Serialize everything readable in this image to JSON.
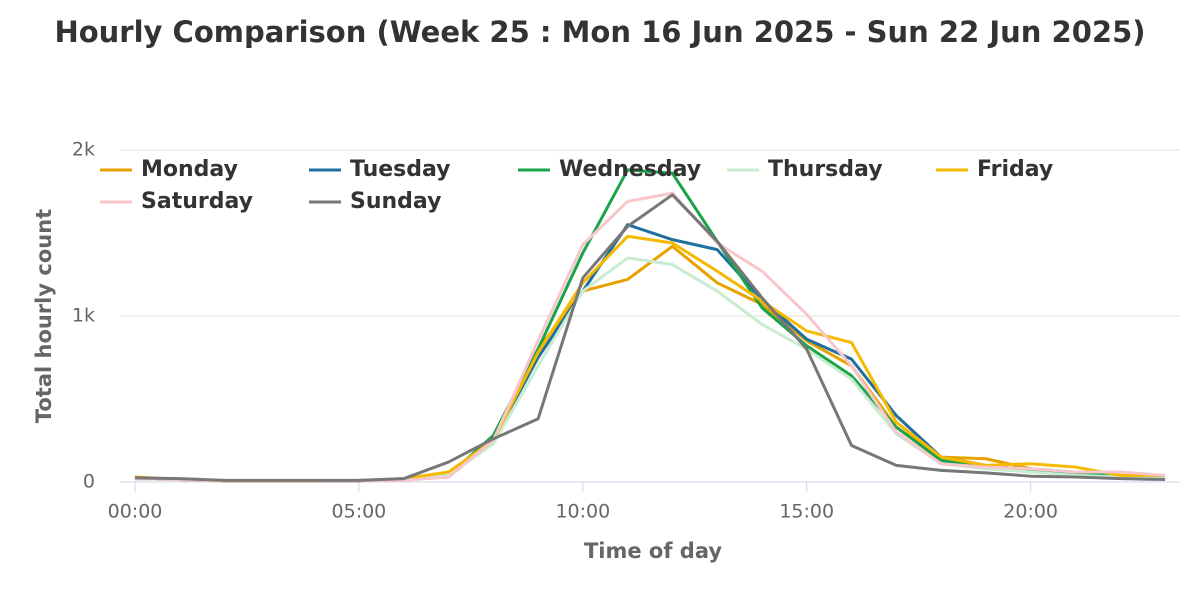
{
  "chart_data": {
    "type": "line",
    "title": "Hourly Comparison (Week 25 : Mon 16 Jun 2025 - Sun 22 Jun 2025)",
    "x_label": "Time of day",
    "y_label": "Total hourly count",
    "categories": [
      "00:00",
      null,
      null,
      null,
      null,
      "05:00",
      null,
      null,
      null,
      null,
      "10:00",
      null,
      null,
      null,
      null,
      "15:00",
      null,
      null,
      null,
      null,
      "20:00",
      null,
      null,
      null
    ],
    "ylim": [
      0,
      2000
    ],
    "yticks": [
      0,
      {
        "value": 1000,
        "label": "1k"
      },
      {
        "value": 2000,
        "label": "2k"
      }
    ],
    "grid": true,
    "legend": "top",
    "series": [
      {
        "name": "Monday",
        "color": "#e8a200",
        "values": [
          30,
          15,
          5,
          5,
          5,
          5,
          15,
          40,
          250,
          800,
          1150,
          1220,
          1420,
          1200,
          1070,
          850,
          700,
          330,
          150,
          140,
          80,
          60,
          40,
          30
        ]
      },
      {
        "name": "Tuesday",
        "color": "#1f6f9f",
        "values": [
          20,
          15,
          5,
          5,
          5,
          5,
          15,
          30,
          250,
          750,
          1150,
          1550,
          1460,
          1400,
          1100,
          860,
          740,
          400,
          150,
          100,
          70,
          50,
          30,
          20
        ]
      },
      {
        "name": "Wednesday",
        "color": "#1aa34a",
        "values": [
          20,
          15,
          5,
          5,
          5,
          5,
          15,
          40,
          280,
          800,
          1380,
          1880,
          1860,
          1450,
          1050,
          820,
          640,
          330,
          130,
          90,
          80,
          50,
          40,
          25
        ]
      },
      {
        "name": "Thursday",
        "color": "#c8ecd0",
        "values": [
          20,
          15,
          5,
          5,
          5,
          5,
          15,
          40,
          230,
          700,
          1150,
          1350,
          1310,
          1150,
          950,
          800,
          620,
          290,
          110,
          80,
          60,
          40,
          30,
          20
        ]
      },
      {
        "name": "Friday",
        "color": "#f6b900",
        "values": [
          25,
          15,
          5,
          5,
          5,
          10,
          20,
          60,
          250,
          780,
          1200,
          1480,
          1440,
          1270,
          1090,
          910,
          840,
          360,
          150,
          100,
          110,
          90,
          40,
          40
        ]
      },
      {
        "name": "Saturday",
        "color": "#f9c6cc",
        "values": [
          20,
          15,
          5,
          5,
          5,
          5,
          10,
          30,
          250,
          850,
          1430,
          1690,
          1740,
          1440,
          1270,
          1010,
          700,
          300,
          110,
          90,
          80,
          60,
          60,
          40
        ]
      },
      {
        "name": "Sunday",
        "color": "#777777",
        "values": [
          25,
          20,
          10,
          10,
          10,
          10,
          20,
          120,
          260,
          380,
          1230,
          1540,
          1730,
          1450,
          1110,
          800,
          220,
          100,
          70,
          55,
          35,
          30,
          20,
          15
        ]
      }
    ]
  }
}
